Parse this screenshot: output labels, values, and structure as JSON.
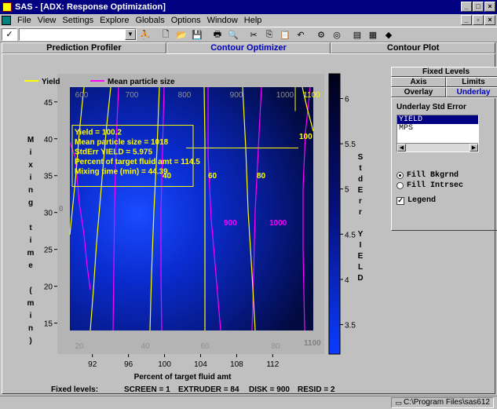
{
  "window": {
    "title": "SAS - [ADX: Response Optimization]"
  },
  "menu": [
    "File",
    "View",
    "Settings",
    "Explore",
    "Globals",
    "Options",
    "Window",
    "Help"
  ],
  "toolbar": {
    "check_label": "✓",
    "combo_value": ""
  },
  "tabs": [
    "Prediction Profiler",
    "Contour Optimizer",
    "Contour Plot"
  ],
  "right_panel": {
    "tab_rows": [
      [
        "Fixed Levels"
      ],
      [
        "Axis",
        "Limits"
      ],
      [
        "Overlay",
        "Underlay"
      ]
    ],
    "title": "Underlay Std Error",
    "list": [
      "YIELD",
      "MPS"
    ],
    "selected": "YIELD",
    "radio_fill_bkgrnd": "Fill Bkgrnd",
    "radio_fill_intrsec": "Fill Intrsec",
    "legend_label": "Legend"
  },
  "chart": {
    "legend": [
      "Yield",
      "Mean particle size"
    ],
    "ylabel_vertical": [
      "M",
      "i",
      "x",
      "i",
      "n",
      "g",
      "",
      "t",
      "i",
      "m",
      "e",
      "",
      "(",
      "m",
      "i",
      "n",
      ")"
    ],
    "xlabel": "Percent of target fluid amt",
    "colorbar_label": [
      "S",
      "t",
      "d",
      "E",
      "r",
      "r",
      "",
      "Y",
      "I",
      "E",
      "L",
      "D"
    ],
    "fixed_levels_label": "Fixed levels:",
    "fixed_levels": [
      "SCREEN = 1",
      "EXTRUDER = 84",
      "DISK = 900",
      "RESID = 2"
    ],
    "tooltip": [
      "Yield = 100.2",
      "Mean particle size = 1018",
      "StdErr YIELD = 5.975",
      "Percent of target fluid amt = 114.5",
      "Mixing time (min) = 44.39"
    ],
    "x_ticks": [
      "92",
      "96",
      "100",
      "104",
      "108",
      "112"
    ],
    "y_ticks": [
      "45",
      "40",
      "35",
      "30",
      "25",
      "20",
      "15"
    ],
    "colorbar_ticks": [
      "6",
      "5.5",
      "5",
      "4.5",
      "4",
      "3.5"
    ],
    "mps_top_labels": [
      "600",
      "700",
      "800",
      "900",
      "1000",
      "1100"
    ],
    "yield_bottom_labels": [
      "20",
      "40",
      "60",
      "80"
    ],
    "yield_contour_labels": [
      "0",
      "40",
      "60",
      "80",
      "100"
    ],
    "mps_contour_labels": [
      "900",
      "1000",
      "1100"
    ]
  },
  "chart_data": {
    "type": "heatmap",
    "xlabel": "Percent of target fluid amt",
    "ylabel": "Mixing time (min)",
    "xlim": [
      89.5,
      116.5
    ],
    "ylim": [
      14,
      47
    ],
    "colorbar": {
      "label": "StdErr YIELD",
      "range": [
        3.5,
        6.0
      ]
    },
    "series": [
      {
        "name": "Yield",
        "contour_levels": [
          0,
          20,
          40,
          60,
          80,
          100
        ]
      },
      {
        "name": "Mean particle size",
        "contour_levels": [
          600,
          700,
          800,
          900,
          1000,
          1100
        ]
      }
    ],
    "annotation_point": {
      "x": 114.5,
      "y": 44.39
    }
  },
  "status": {
    "path": "C:\\Program Files\\sas612"
  }
}
